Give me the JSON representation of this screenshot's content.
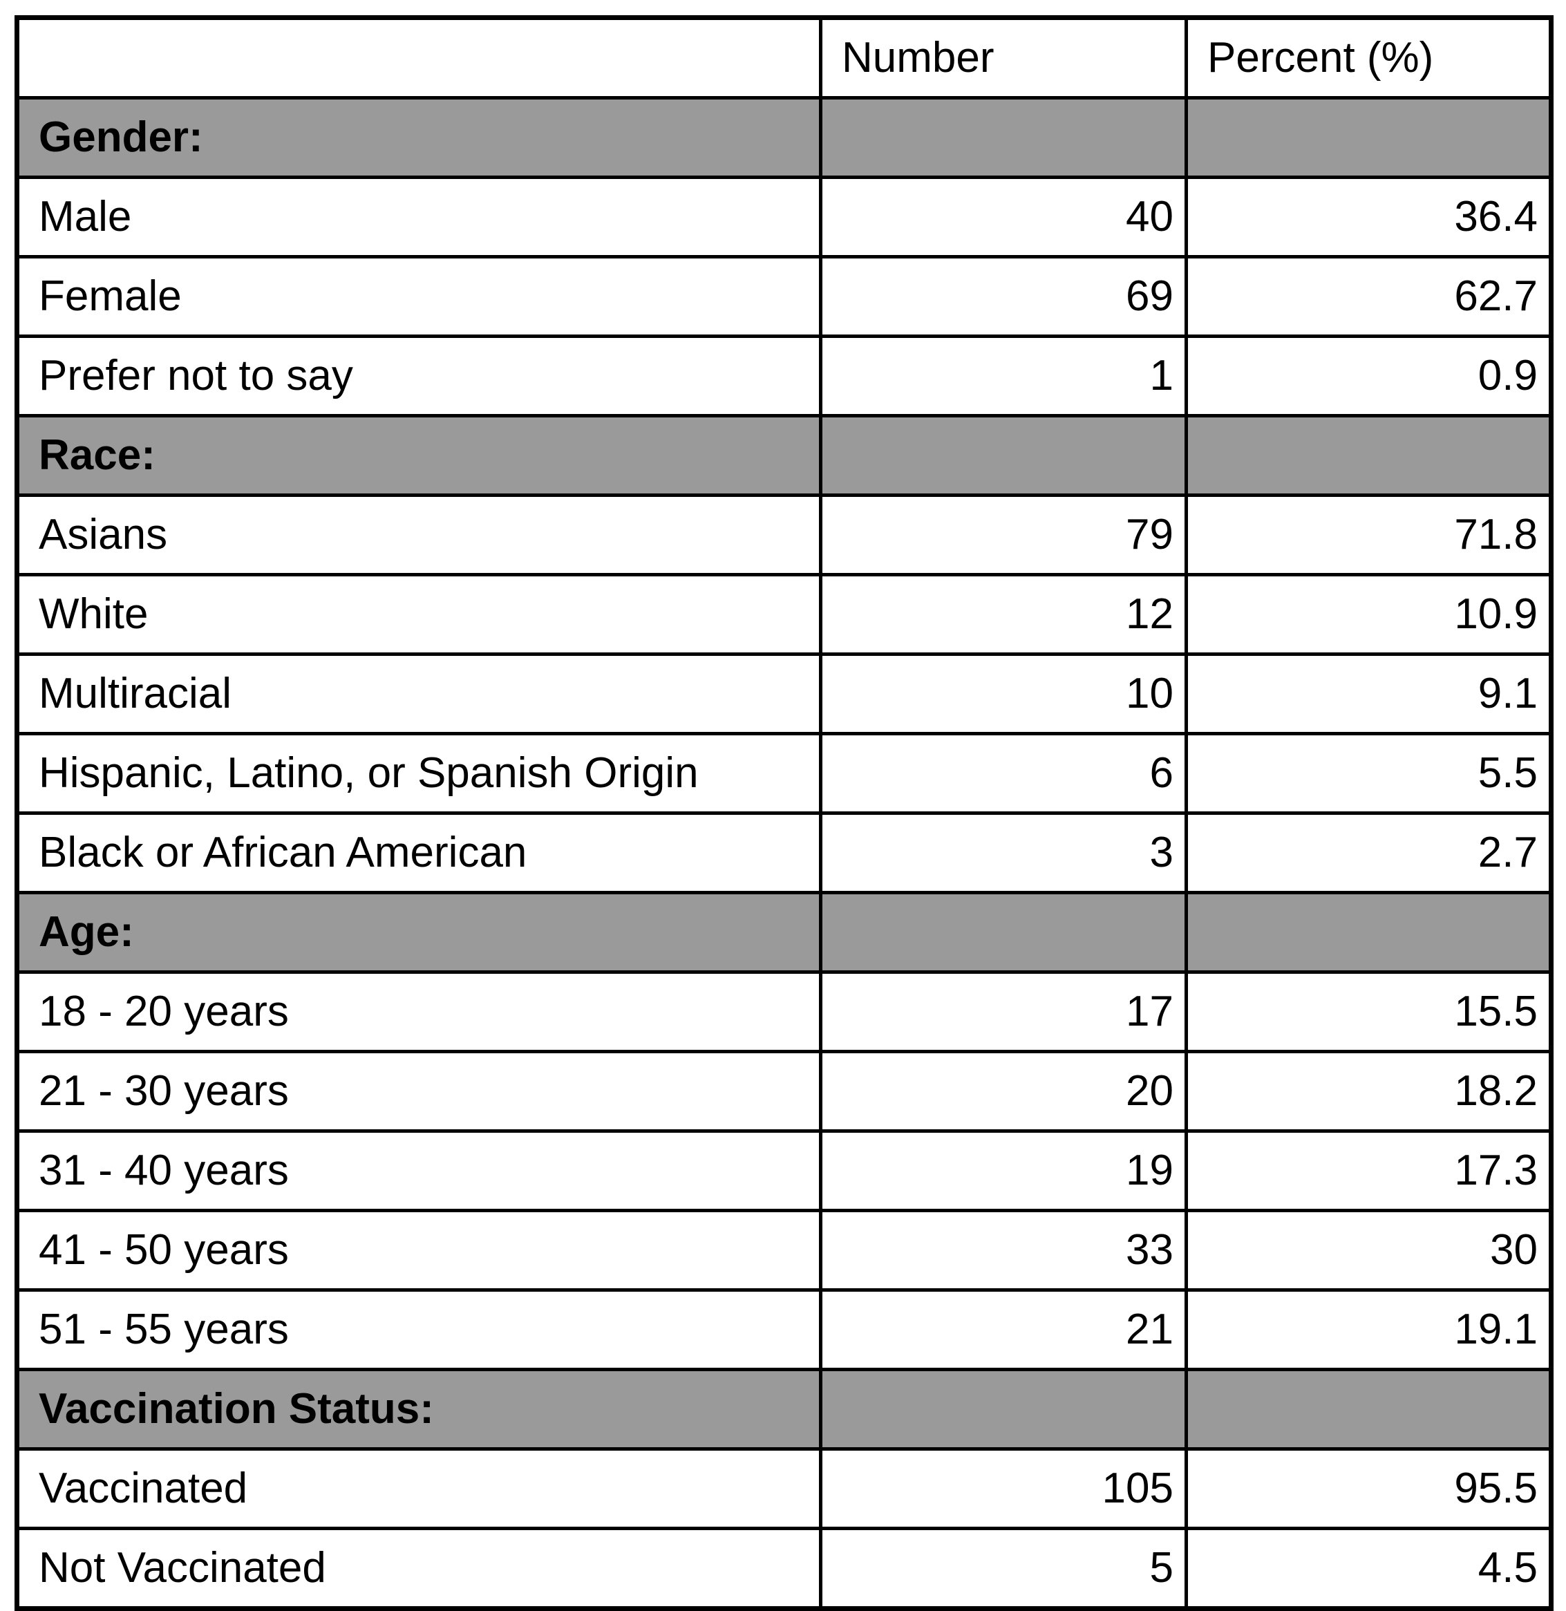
{
  "colors": {
    "section_header_bg": "#9a9a9a",
    "border": "#000000",
    "background": "#ffffff",
    "text": "#000000"
  },
  "chart_data": {
    "type": "table",
    "title": "",
    "columns": [
      "",
      "Number",
      "Percent (%)"
    ],
    "sections": [
      {
        "header": "Gender:",
        "rows": [
          {
            "label": "Male",
            "number": "40",
            "percent": "36.4"
          },
          {
            "label": "Female",
            "number": "69",
            "percent": "62.7"
          },
          {
            "label": "Prefer not to say",
            "number": "1",
            "percent": "0.9"
          }
        ]
      },
      {
        "header": "Race:",
        "rows": [
          {
            "label": "Asians",
            "number": "79",
            "percent": "71.8"
          },
          {
            "label": "White",
            "number": "12",
            "percent": "10.9"
          },
          {
            "label": "Multiracial",
            "number": "10",
            "percent": "9.1"
          },
          {
            "label": "Hispanic, Latino, or Spanish Origin",
            "number": "6",
            "percent": "5.5"
          },
          {
            "label": "Black or African American",
            "number": "3",
            "percent": "2.7"
          }
        ]
      },
      {
        "header": "Age:",
        "rows": [
          {
            "label": "18 - 20 years",
            "number": "17",
            "percent": "15.5"
          },
          {
            "label": "21 - 30 years",
            "number": "20",
            "percent": "18.2"
          },
          {
            "label": "31 - 40 years",
            "number": "19",
            "percent": "17.3"
          },
          {
            "label": "41 - 50 years",
            "number": "33",
            "percent": "30"
          },
          {
            "label": "51 - 55 years",
            "number": "21",
            "percent": "19.1"
          }
        ]
      },
      {
        "header": "Vaccination Status:",
        "rows": [
          {
            "label": "Vaccinated",
            "number": "105",
            "percent": "95.5"
          },
          {
            "label": "Not Vaccinated",
            "number": "5",
            "percent": "4.5"
          }
        ]
      }
    ]
  }
}
